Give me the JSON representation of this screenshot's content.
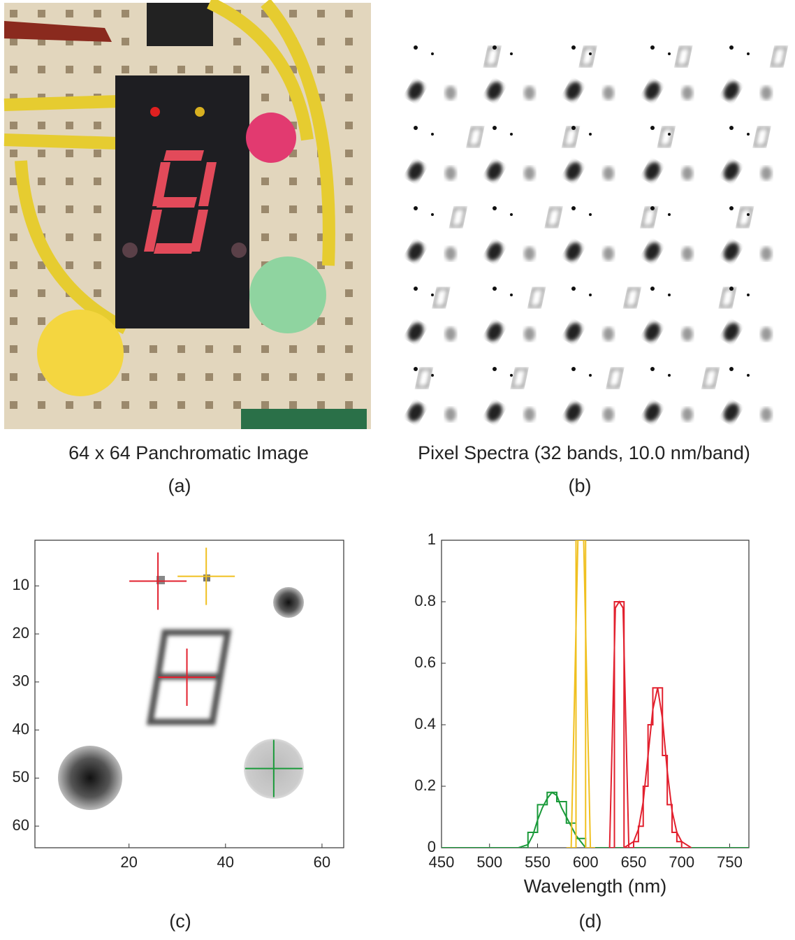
{
  "panels": [
    {
      "caption": "64 x 64 Panchromatic Image",
      "label": "(a)"
    },
    {
      "caption": "Pixel Spectra (32 bands, 10.0 nm/band)",
      "label": "(b)"
    }
  ],
  "chart_data": [
    {
      "type": "image",
      "label": "(c)",
      "xlim": [
        0.5,
        64.5
      ],
      "ylim": [
        64.5,
        0.5
      ],
      "xticks": [
        20,
        40,
        60
      ],
      "yticks": [
        10,
        20,
        30,
        40,
        50,
        60
      ],
      "markers": [
        {
          "x": 26,
          "y": 9,
          "color": "#e2202e"
        },
        {
          "x": 36,
          "y": 8,
          "color": "#f0c020"
        },
        {
          "x": 32,
          "y": 29,
          "color": "#e2202e"
        },
        {
          "x": 50,
          "y": 48,
          "color": "#1a9a3a"
        }
      ]
    },
    {
      "type": "line",
      "label": "(d)",
      "xlabel": "Wavelength (nm)",
      "xlim": [
        450,
        770
      ],
      "ylim": [
        0,
        1
      ],
      "xticks": [
        450,
        500,
        550,
        600,
        650,
        700,
        750
      ],
      "yticks": [
        0,
        0.2,
        0.4,
        0.6,
        0.8,
        1
      ],
      "series": [
        {
          "color": "#1a9a3a",
          "x": [
            450,
            530,
            540,
            545,
            550,
            555,
            560,
            565,
            570,
            575,
            580,
            585,
            590,
            600,
            770
          ],
          "values": [
            0,
            0,
            0.01,
            0.04,
            0.09,
            0.13,
            0.16,
            0.18,
            0.17,
            0.13,
            0.1,
            0.07,
            0.04,
            0,
            0
          ]
        },
        {
          "color": "#1a9a3a",
          "x": [
            535,
            540,
            540,
            550,
            550,
            560,
            560,
            570,
            570,
            580,
            580,
            590,
            590,
            600,
            600,
            605
          ],
          "values": [
            0,
            0,
            0.05,
            0.05,
            0.14,
            0.14,
            0.18,
            0.18,
            0.15,
            0.15,
            0.08,
            0.08,
            0.03,
            0.03,
            0,
            0
          ]
        },
        {
          "color": "#f0c020",
          "x": [
            580,
            585,
            590,
            590,
            600,
            600,
            605,
            610
          ],
          "values": [
            0,
            0,
            0,
            1,
            1,
            0,
            0,
            0
          ]
        },
        {
          "color": "#f0c020",
          "x": [
            585,
            592,
            598,
            605
          ],
          "values": [
            0,
            1,
            1,
            0
          ]
        },
        {
          "color": "#e2202e",
          "x": [
            625,
            630,
            630,
            635,
            635,
            640,
            640,
            645
          ],
          "values": [
            0,
            0,
            0.8,
            0.8,
            0.8,
            0.8,
            0,
            0
          ]
        },
        {
          "color": "#e2202e",
          "x": [
            625,
            631,
            635,
            639,
            645
          ],
          "values": [
            0,
            0.78,
            0.8,
            0.78,
            0
          ]
        },
        {
          "color": "#e2202e",
          "x": [
            645,
            650,
            650,
            655,
            655,
            660,
            660,
            665,
            665,
            670,
            670,
            675,
            675,
            680,
            680,
            685,
            685,
            690,
            690,
            695,
            695,
            700,
            700,
            710
          ],
          "values": [
            0,
            0,
            0.02,
            0.02,
            0.07,
            0.07,
            0.2,
            0.2,
            0.4,
            0.4,
            0.52,
            0.52,
            0.52,
            0.52,
            0.3,
            0.3,
            0.14,
            0.14,
            0.05,
            0.05,
            0.02,
            0.02,
            0,
            0
          ]
        },
        {
          "color": "#e2202e",
          "x": [
            640,
            650,
            655,
            660,
            665,
            670,
            675,
            680,
            685,
            690,
            695,
            700,
            710
          ],
          "values": [
            0,
            0.02,
            0.06,
            0.15,
            0.3,
            0.45,
            0.52,
            0.42,
            0.25,
            0.12,
            0.05,
            0.02,
            0
          ]
        }
      ]
    }
  ]
}
